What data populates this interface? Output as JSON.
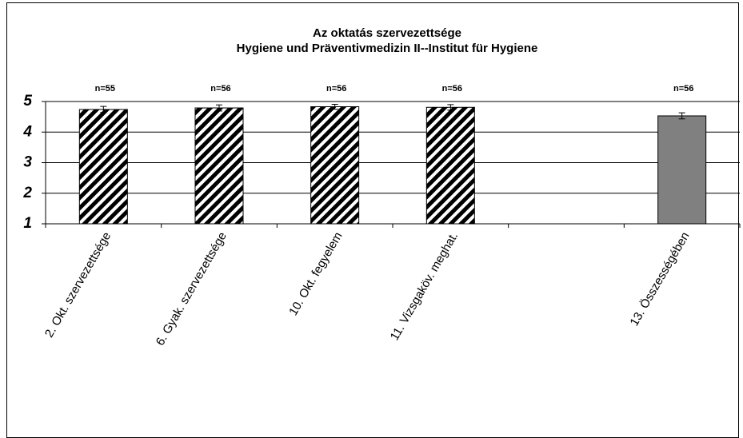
{
  "chart_data": {
    "type": "bar",
    "title": "Az oktatás szervezettsége",
    "subtitle": "Hygiene und Präventivmedizin II--Institut für Hygiene",
    "categories": [
      "2. Okt. szervezettsége",
      "6. Gyak. szervezettsége",
      "10. Okt. fegyelem",
      "11. Vizsgaköv. meghat.",
      null,
      "13. Összességében"
    ],
    "values": [
      4.74,
      4.79,
      4.83,
      4.81,
      null,
      4.53
    ],
    "errors": [
      0.1,
      0.1,
      0.08,
      0.09,
      null,
      0.1
    ],
    "n_labels": [
      "n=55",
      "n=56",
      "n=56",
      "n=56",
      null,
      "n=56"
    ],
    "colors": [
      "#000000",
      "#000000",
      "#000000",
      "#000000",
      null,
      "#808080"
    ],
    "hatched": [
      true,
      true,
      true,
      true,
      null,
      false
    ],
    "ylim": [
      1,
      5
    ],
    "yticks": [
      1,
      2,
      3,
      4,
      5
    ],
    "grid": true
  }
}
